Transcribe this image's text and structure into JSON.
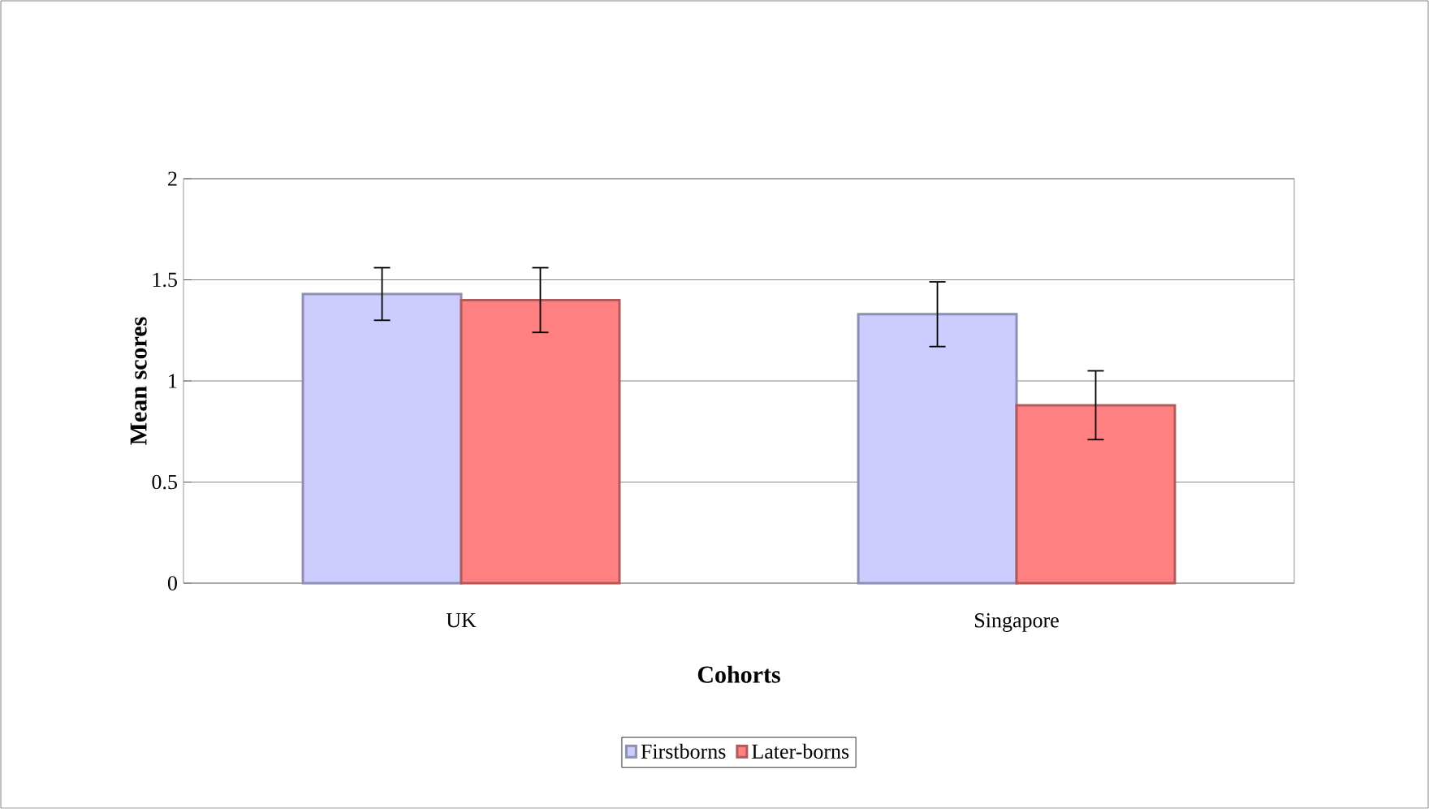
{
  "chart_data": {
    "type": "bar",
    "xlabel": "Cohorts",
    "ylabel": "Mean scores",
    "categories": [
      "UK",
      "Singapore"
    ],
    "series": [
      {
        "name": "Firstborns",
        "color": "#ccccff",
        "values": [
          1.43,
          1.33
        ],
        "errors": [
          0.13,
          0.16
        ]
      },
      {
        "name": "Later-borns",
        "color": "#ff8080",
        "values": [
          1.4,
          0.88
        ],
        "errors": [
          0.16,
          0.17
        ]
      }
    ],
    "ylim": [
      0,
      2
    ],
    "yticks": [
      0,
      0.5,
      1,
      1.5,
      2
    ],
    "grid": "y",
    "legend": "bottom"
  }
}
